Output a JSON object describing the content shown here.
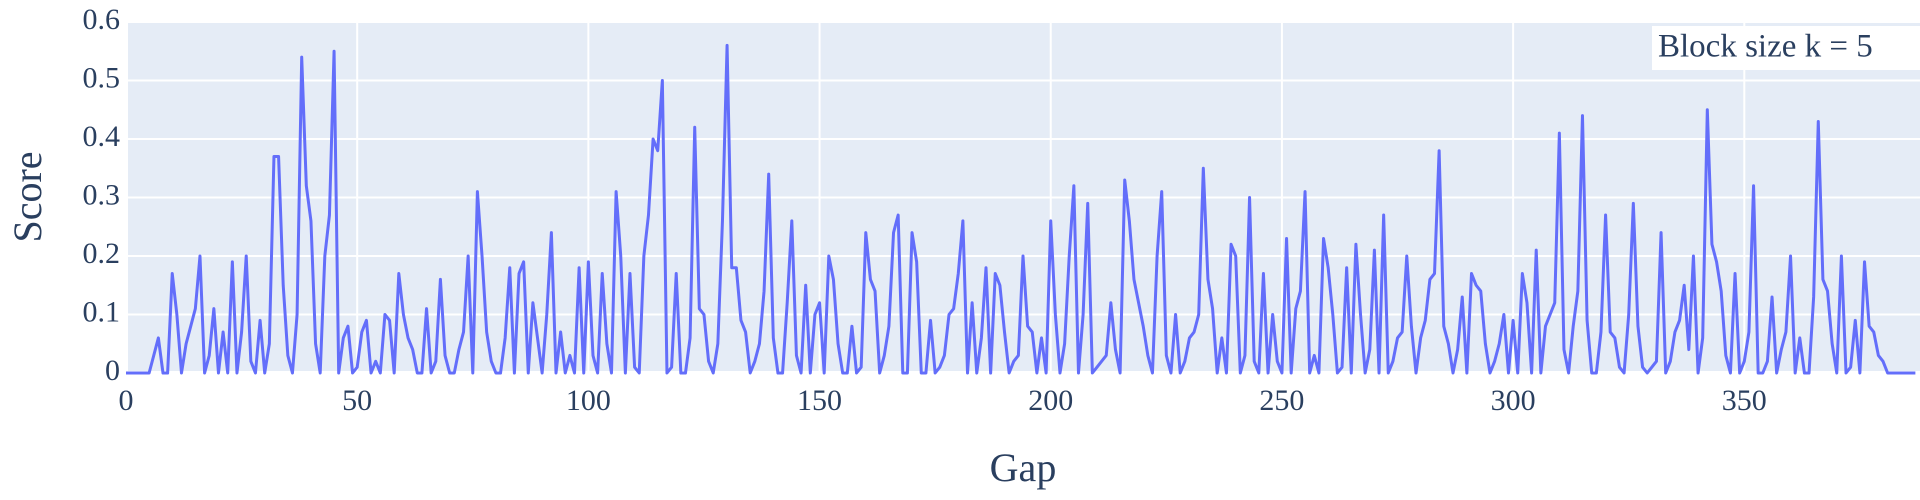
{
  "chart_data": {
    "type": "line",
    "xlabel": "Gap",
    "ylabel": "Score",
    "annotation": "Block size k = 5",
    "xlim": [
      0,
      388
    ],
    "xticks": [
      0,
      50,
      100,
      150,
      200,
      250,
      300,
      350
    ],
    "ylim": [
      0,
      0.6
    ],
    "yticks": [
      0,
      0.1,
      0.2,
      0.3,
      0.4,
      0.5,
      0.6
    ],
    "grid": true,
    "x": [
      0,
      1,
      2,
      3,
      4,
      5,
      6,
      7,
      8,
      9,
      10,
      11,
      12,
      13,
      14,
      15,
      16,
      17,
      18,
      19,
      20,
      21,
      22,
      23,
      24,
      25,
      26,
      27,
      28,
      29,
      30,
      31,
      32,
      33,
      34,
      35,
      36,
      37,
      38,
      39,
      40,
      41,
      42,
      43,
      44,
      45,
      46,
      47,
      48,
      49,
      50,
      51,
      52,
      53,
      54,
      55,
      56,
      57,
      58,
      59,
      60,
      61,
      62,
      63,
      64,
      65,
      66,
      67,
      68,
      69,
      70,
      71,
      72,
      73,
      74,
      75,
      76,
      77,
      78,
      79,
      80,
      81,
      82,
      83,
      84,
      85,
      86,
      87,
      88,
      89,
      90,
      91,
      92,
      93,
      94,
      95,
      96,
      97,
      98,
      99,
      100,
      101,
      102,
      103,
      104,
      105,
      106,
      107,
      108,
      109,
      110,
      111,
      112,
      113,
      114,
      115,
      116,
      117,
      118,
      119,
      120,
      121,
      122,
      123,
      124,
      125,
      126,
      127,
      128,
      129,
      130,
      131,
      132,
      133,
      134,
      135,
      136,
      137,
      138,
      139,
      140,
      141,
      142,
      143,
      144,
      145,
      146,
      147,
      148,
      149,
      150,
      151,
      152,
      153,
      154,
      155,
      156,
      157,
      158,
      159,
      160,
      161,
      162,
      163,
      164,
      165,
      166,
      167,
      168,
      169,
      170,
      171,
      172,
      173,
      174,
      175,
      176,
      177,
      178,
      179,
      180,
      181,
      182,
      183,
      184,
      185,
      186,
      187,
      188,
      189,
      190,
      191,
      192,
      193,
      194,
      195,
      196,
      197,
      198,
      199,
      200,
      201,
      202,
      203,
      204,
      205,
      206,
      207,
      208,
      209,
      210,
      211,
      212,
      213,
      214,
      215,
      216,
      217,
      218,
      219,
      220,
      221,
      222,
      223,
      224,
      225,
      226,
      227,
      228,
      229,
      230,
      231,
      232,
      233,
      234,
      235,
      236,
      237,
      238,
      239,
      240,
      241,
      242,
      243,
      244,
      245,
      246,
      247,
      248,
      249,
      250,
      251,
      252,
      253,
      254,
      255,
      256,
      257,
      258,
      259,
      260,
      261,
      262,
      263,
      264,
      265,
      266,
      267,
      268,
      269,
      270,
      271,
      272,
      273,
      274,
      275,
      276,
      277,
      278,
      279,
      280,
      281,
      282,
      283,
      284,
      285,
      286,
      287,
      288,
      289,
      290,
      291,
      292,
      293,
      294,
      295,
      296,
      297,
      298,
      299,
      300,
      301,
      302,
      303,
      304,
      305,
      306,
      307,
      308,
      309,
      310,
      311,
      312,
      313,
      314,
      315,
      316,
      317,
      318,
      319,
      320,
      321,
      322,
      323,
      324,
      325,
      326,
      327,
      328,
      329,
      330,
      331,
      332,
      333,
      334,
      335,
      336,
      337,
      338,
      339,
      340,
      341,
      342,
      343,
      344,
      345,
      346,
      347,
      348,
      349,
      350,
      351,
      352,
      353,
      354,
      355,
      356,
      357,
      358,
      359,
      360,
      361,
      362,
      363,
      364,
      365,
      366,
      367,
      368,
      369,
      370,
      371,
      372,
      373,
      374,
      375,
      376,
      377,
      378,
      379,
      380,
      381,
      382,
      383,
      384,
      385,
      386,
      387
    ],
    "series": [
      {
        "color": "#636efa",
        "values": [
          0,
          0,
          0,
          0,
          0,
          0,
          0.03,
          0.06,
          0,
          0,
          0.17,
          0.1,
          0,
          0.05,
          0.08,
          0.11,
          0.2,
          0,
          0.03,
          0.11,
          0,
          0.07,
          0,
          0.19,
          0,
          0.07,
          0.2,
          0.02,
          0,
          0.09,
          0,
          0.05,
          0.37,
          0.37,
          0.15,
          0.03,
          0,
          0.1,
          0.54,
          0.32,
          0.26,
          0.05,
          0,
          0.2,
          0.27,
          0.55,
          0,
          0.06,
          0.08,
          0,
          0.01,
          0.07,
          0.09,
          0,
          0.02,
          0,
          0.1,
          0.09,
          0,
          0.17,
          0.1,
          0.06,
          0.04,
          0,
          0,
          0.11,
          0,
          0.02,
          0.16,
          0.03,
          0,
          0,
          0.04,
          0.07,
          0.2,
          0,
          0.31,
          0.2,
          0.07,
          0.02,
          0,
          0,
          0.06,
          0.18,
          0,
          0.17,
          0.19,
          0,
          0.12,
          0.06,
          0,
          0.1,
          0.24,
          0,
          0.07,
          0,
          0.03,
          0,
          0.18,
          0,
          0.19,
          0.03,
          0,
          0.17,
          0.05,
          0,
          0.31,
          0.2,
          0,
          0.17,
          0.01,
          0,
          0.2,
          0.27,
          0.4,
          0.38,
          0.5,
          0,
          0.01,
          0.17,
          0,
          0,
          0.06,
          0.42,
          0.11,
          0.1,
          0.02,
          0,
          0.05,
          0.26,
          0.56,
          0.18,
          0.18,
          0.09,
          0.07,
          0,
          0.02,
          0.05,
          0.14,
          0.34,
          0.06,
          0,
          0,
          0.12,
          0.26,
          0.03,
          0,
          0.15,
          0,
          0.1,
          0.12,
          0,
          0.2,
          0.16,
          0.05,
          0,
          0,
          0.08,
          0,
          0.01,
          0.24,
          0.16,
          0.14,
          0,
          0.03,
          0.08,
          0.24,
          0.27,
          0,
          0,
          0.24,
          0.19,
          0,
          0,
          0.09,
          0,
          0.01,
          0.03,
          0.1,
          0.11,
          0.17,
          0.26,
          0,
          0.12,
          0,
          0.06,
          0.18,
          0,
          0.17,
          0.15,
          0.07,
          0,
          0.02,
          0.03,
          0.2,
          0.08,
          0.07,
          0,
          0.06,
          0,
          0.26,
          0.1,
          0,
          0.05,
          0.2,
          0.32,
          0,
          0.1,
          0.29,
          0,
          0.01,
          0.02,
          0.03,
          0.12,
          0.04,
          0,
          0.33,
          0.26,
          0.16,
          0.12,
          0.08,
          0.03,
          0,
          0.2,
          0.31,
          0.03,
          0,
          0.1,
          0,
          0.02,
          0.06,
          0.07,
          0.1,
          0.35,
          0.16,
          0.11,
          0,
          0.06,
          0,
          0.22,
          0.2,
          0,
          0.03,
          0.3,
          0.02,
          0,
          0.17,
          0,
          0.1,
          0.02,
          0,
          0.23,
          0,
          0.11,
          0.14,
          0.31,
          0,
          0.03,
          0,
          0.23,
          0.18,
          0.1,
          0,
          0.01,
          0.18,
          0,
          0.22,
          0.1,
          0,
          0.04,
          0.21,
          0,
          0.27,
          0,
          0.02,
          0.06,
          0.07,
          0.2,
          0.08,
          0,
          0.06,
          0.09,
          0.16,
          0.17,
          0.38,
          0.08,
          0.05,
          0,
          0.04,
          0.13,
          0,
          0.17,
          0.15,
          0.14,
          0.05,
          0,
          0.02,
          0.05,
          0.1,
          0,
          0.09,
          0,
          0.17,
          0.12,
          0,
          0.21,
          0,
          0.08,
          0.1,
          0.12,
          0.41,
          0.04,
          0,
          0.08,
          0.14,
          0.44,
          0.09,
          0,
          0,
          0.07,
          0.27,
          0.07,
          0.06,
          0.01,
          0,
          0.1,
          0.29,
          0.08,
          0.01,
          0,
          0.01,
          0.02,
          0.24,
          0,
          0.02,
          0.07,
          0.09,
          0.15,
          0.04,
          0.2,
          0,
          0.06,
          0.45,
          0.22,
          0.19,
          0.14,
          0.03,
          0,
          0.17,
          0,
          0.02,
          0.07,
          0.32,
          0,
          0,
          0.02,
          0.13,
          0,
          0.04,
          0.07,
          0.2,
          0,
          0.06,
          0,
          0,
          0.13,
          0.43,
          0.16,
          0.14,
          0.05,
          0,
          0.2,
          0,
          0.01,
          0.09,
          0,
          0.19,
          0.08,
          0.07,
          0.03,
          0.02,
          0,
          0,
          0,
          0,
          0,
          0,
          0
        ]
      }
    ]
  }
}
